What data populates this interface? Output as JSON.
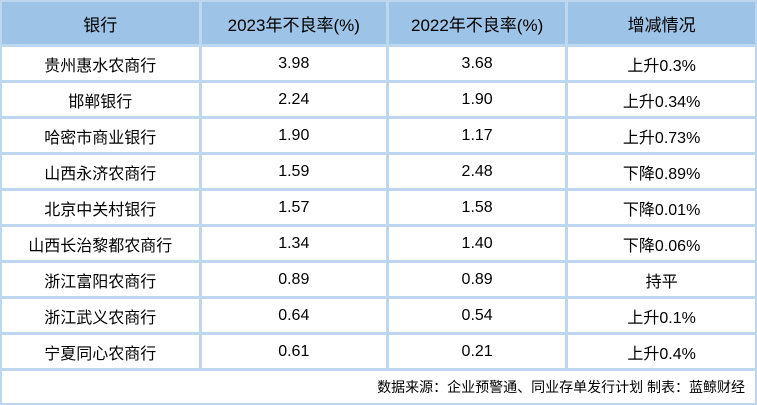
{
  "chart_data": {
    "type": "table",
    "columns": [
      "银行",
      "2023年不良率(%)",
      "2022年不良率(%)",
      "增减情况"
    ],
    "rows": [
      [
        "贵州惠水农商行",
        "3.98",
        "3.68",
        "上升0.3%"
      ],
      [
        "邯郸银行",
        "2.24",
        "1.90",
        "上升0.34%"
      ],
      [
        "哈密市商业银行",
        "1.90",
        "1.17",
        "上升0.73%"
      ],
      [
        "山西永济农商行",
        "1.59",
        "2.48",
        "下降0.89%"
      ],
      [
        "北京中关村银行",
        "1.57",
        "1.58",
        "下降0.01%"
      ],
      [
        "山西长治黎都农商行",
        "1.34",
        "1.40",
        "下降0.06%"
      ],
      [
        "浙江富阳农商行",
        "0.89",
        "0.89",
        "持平"
      ],
      [
        "浙江武义农商行",
        "0.64",
        "0.54",
        "上升0.1%"
      ],
      [
        "宁夏同心农商行",
        "0.61",
        "0.21",
        "上升0.4%"
      ]
    ],
    "footer_note": "数据来源：企业预警通、同业存单发行计划 制表：蓝鲸财经"
  },
  "colors": {
    "header_bg": "#9dc3e6",
    "grid_line": "#bdd7ee",
    "row_bg": "#ffffff",
    "text": "#000000"
  }
}
